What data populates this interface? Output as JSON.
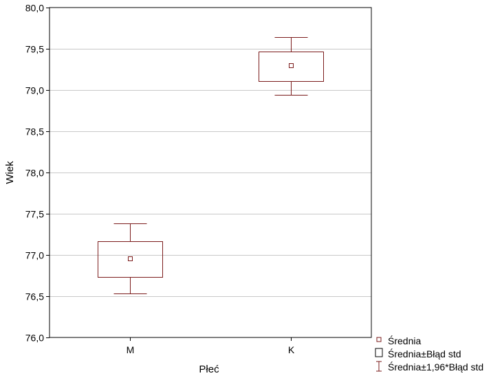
{
  "chart_data": {
    "type": "box",
    "xlabel": "Płeć",
    "ylabel": "Wiek",
    "ylim": [
      76.0,
      80.0
    ],
    "yticks": [
      "76,0",
      "76,5",
      "77,0",
      "77,5",
      "78,0",
      "78,5",
      "79,0",
      "79,5",
      "80,0"
    ],
    "categories": [
      "M",
      "K"
    ],
    "groups": [
      {
        "category": "M",
        "mean": 76.96,
        "se_low": 76.73,
        "se_high": 77.17,
        "ci_low": 76.53,
        "ci_high": 77.38
      },
      {
        "category": "K",
        "mean": 79.3,
        "se_low": 79.11,
        "se_high": 79.47,
        "ci_low": 78.94,
        "ci_high": 79.64
      }
    ],
    "grid": true,
    "legend_position": "bottom-right",
    "legend": [
      "Średnia",
      "Średnia±Błąd std",
      "Średnia±1,96*Błąd std"
    ],
    "colors": {
      "marks": "#7a1a1a",
      "grid": "#c8c8c8",
      "axis": "#000000"
    }
  }
}
